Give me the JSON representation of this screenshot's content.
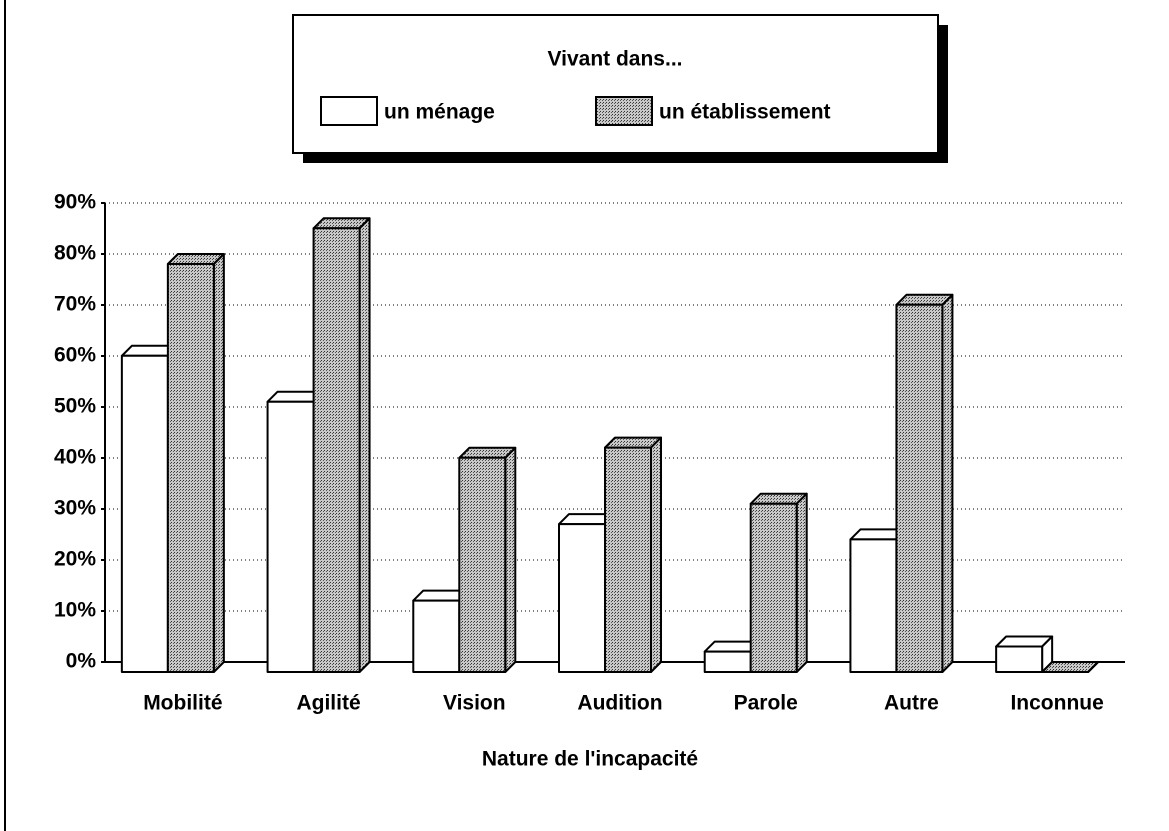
{
  "chart_data": {
    "type": "bar3d",
    "legend_title": "Vivant dans...",
    "x_label": "Nature de l'incapacité",
    "categories": [
      "Mobilité",
      "Agilité",
      "Vision",
      "Audition",
      "Parole",
      "Autre",
      "Inconnue"
    ],
    "series": [
      {
        "name": "un ménage",
        "color": "#ffffff",
        "values": [
          62,
          53,
          14,
          29,
          4,
          26,
          5
        ]
      },
      {
        "name": "un établissement",
        "color": "#9a9a9a",
        "values": [
          80,
          87,
          42,
          44,
          33,
          72,
          0
        ]
      }
    ],
    "ylim": [
      0,
      90
    ],
    "yticks": [
      {
        "value": 0,
        "label": "0%"
      },
      {
        "value": 10,
        "label": "10%"
      },
      {
        "value": 20,
        "label": "20%"
      },
      {
        "value": 30,
        "label": "30%"
      },
      {
        "value": 40,
        "label": "40%"
      },
      {
        "value": 50,
        "label": "50%"
      },
      {
        "value": 60,
        "label": "60%"
      },
      {
        "value": 70,
        "label": "70%"
      },
      {
        "value": 80,
        "label": "80%"
      },
      {
        "value": 90,
        "label": "90%"
      }
    ],
    "grid": true
  }
}
